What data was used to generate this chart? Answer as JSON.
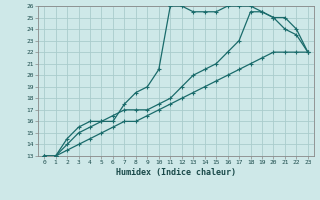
{
  "xlabel": "Humidex (Indice chaleur)",
  "xlim": [
    -0.5,
    23.5
  ],
  "ylim": [
    13,
    26
  ],
  "xticks": [
    0,
    1,
    2,
    3,
    4,
    5,
    6,
    7,
    8,
    9,
    10,
    11,
    12,
    13,
    14,
    15,
    16,
    17,
    18,
    19,
    20,
    21,
    22,
    23
  ],
  "yticks": [
    13,
    14,
    15,
    16,
    17,
    18,
    19,
    20,
    21,
    22,
    23,
    24,
    25,
    26
  ],
  "background_color": "#cee8e8",
  "grid_color": "#aacccc",
  "line_color": "#1a6b6b",
  "line1_x": [
    0,
    1,
    2,
    3,
    4,
    5,
    6,
    7,
    8,
    9,
    10,
    11,
    12,
    13,
    14,
    15,
    16,
    17,
    18,
    19,
    20,
    21,
    22,
    23
  ],
  "line1_y": [
    13,
    13,
    14.5,
    15.5,
    16,
    16,
    16,
    17.5,
    18.5,
    19,
    20.5,
    26,
    26,
    25.5,
    25.5,
    25.5,
    26,
    26,
    26,
    25.5,
    25,
    24,
    23.5,
    22
  ],
  "line2_x": [
    0,
    1,
    2,
    3,
    4,
    5,
    6,
    7,
    8,
    9,
    10,
    11,
    12,
    13,
    14,
    15,
    16,
    17,
    18,
    19,
    20,
    21,
    22,
    23
  ],
  "line2_y": [
    13,
    13,
    14,
    15,
    15.5,
    16,
    16.5,
    17,
    17,
    17,
    17.5,
    18,
    19,
    20,
    20.5,
    21,
    22,
    23,
    25.5,
    25.5,
    25,
    25,
    24,
    22
  ],
  "line3_x": [
    0,
    1,
    2,
    3,
    4,
    5,
    6,
    7,
    8,
    9,
    10,
    11,
    12,
    13,
    14,
    15,
    16,
    17,
    18,
    19,
    20,
    21,
    22,
    23
  ],
  "line3_y": [
    13,
    13,
    13.5,
    14,
    14.5,
    15,
    15.5,
    16,
    16,
    16.5,
    17,
    17.5,
    18,
    18.5,
    19,
    19.5,
    20,
    20.5,
    21,
    21.5,
    22,
    22,
    22,
    22
  ]
}
